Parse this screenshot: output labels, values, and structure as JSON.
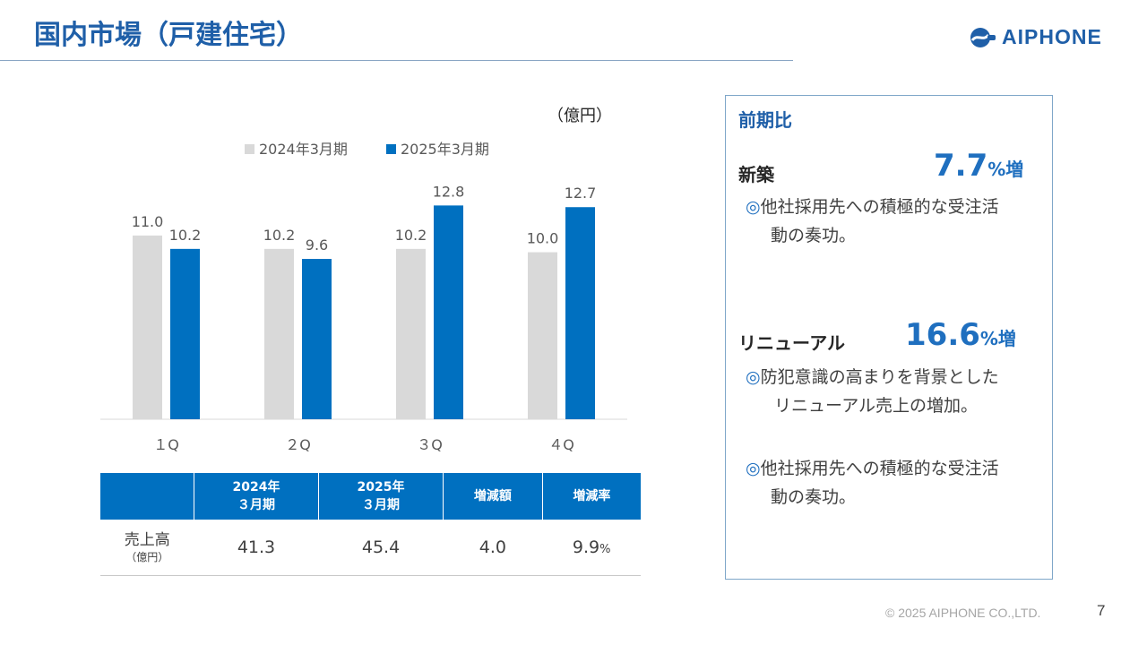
{
  "header": {
    "title": "国内市場（戸建住宅）",
    "logo_text": "AIPHONE"
  },
  "colors": {
    "series_2024": "#d9d9d9",
    "series_2025": "#0070c0",
    "accent": "#1f5fa8"
  },
  "chart_data": {
    "type": "bar",
    "unit": "（億円）",
    "categories": [
      "１Q",
      "２Q",
      "３Q",
      "４Q"
    ],
    "series": [
      {
        "name": "2024年3月期",
        "values": [
          11.0,
          10.2,
          10.2,
          10.0
        ],
        "labels": [
          "11.0",
          "10.2",
          "10.2",
          "10.0"
        ],
        "color": "#d9d9d9"
      },
      {
        "name": "2025年3月期",
        "values": [
          10.2,
          9.6,
          12.8,
          12.7
        ],
        "labels": [
          "10.2",
          "9.6",
          "12.8",
          "12.7"
        ],
        "color": "#0070c0"
      }
    ],
    "ylim": [
      0,
      14
    ],
    "legend_position": "top"
  },
  "table": {
    "headers": [
      {
        "line1": "",
        "line2": ""
      },
      {
        "line1": "2024年",
        "line2": "３月期"
      },
      {
        "line1": "2025年",
        "line2": "３月期"
      },
      {
        "line1": "増減額",
        "line2": ""
      },
      {
        "line1": "増減率",
        "line2": ""
      }
    ],
    "row": {
      "label": "売上高",
      "sublabel": "（億円）",
      "values": [
        "41.3",
        "45.4",
        "4.0",
        "9.9"
      ],
      "rate_suffix": "%"
    }
  },
  "panel": {
    "title": "前期比",
    "new_build": {
      "label": "新築",
      "value": "7.7",
      "suffix": "%増"
    },
    "new_build_note": {
      "mark": "◎",
      "line1": "他社採用先への積極的な受注活",
      "line2": "動の奏功。"
    },
    "renewal": {
      "label": "リニューアル",
      "value": "16.6",
      "suffix": "%増"
    },
    "renewal_note_1": {
      "mark": "◎",
      "line1": "防犯意識の高まりを背景とした",
      "line2": "リニューアル売上の増加。"
    },
    "renewal_note_2": {
      "mark": "◎",
      "line1": "他社採用先への積極的な受注活",
      "line2": "動の奏功。"
    }
  },
  "footer": {
    "copyright": "© 2025 AIPHONE CO.,LTD.",
    "page": "7"
  }
}
